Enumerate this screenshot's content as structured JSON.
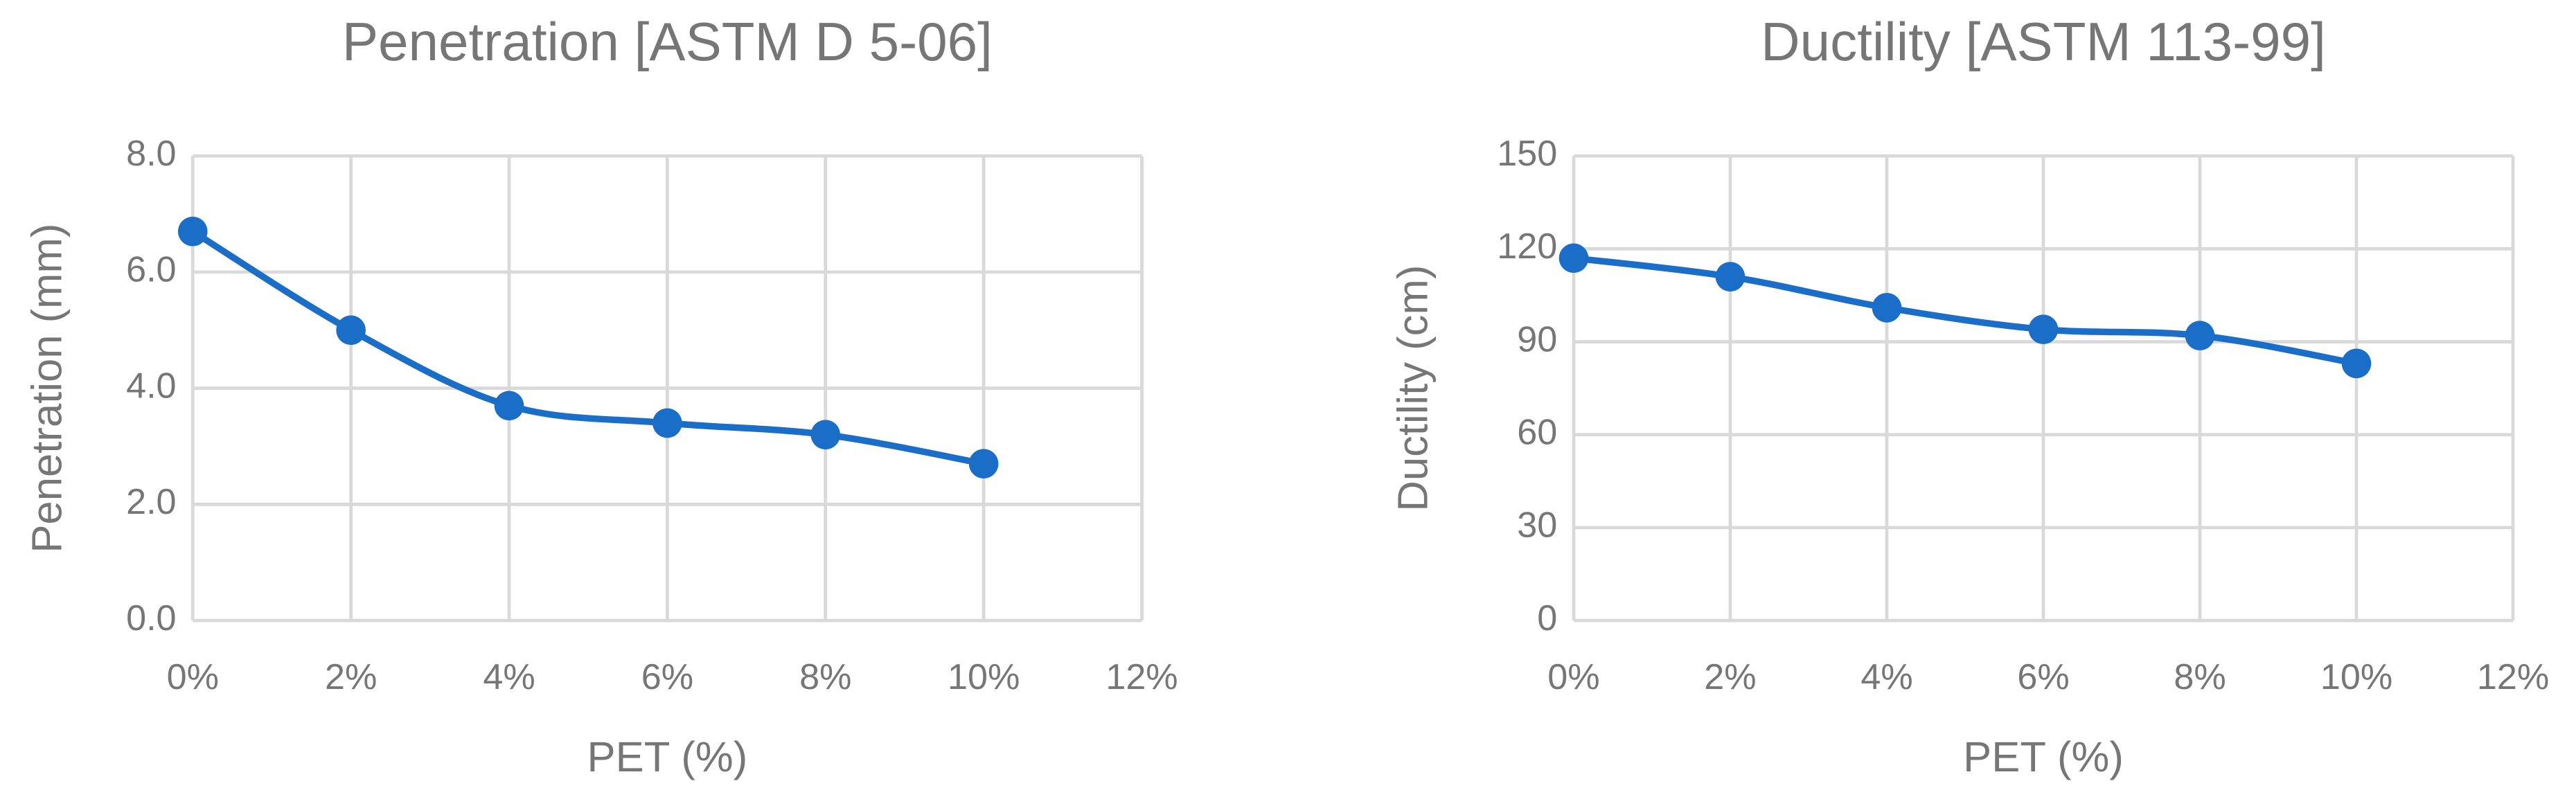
{
  "chart_data": [
    {
      "type": "line",
      "title": "Penetration [ASTM D 5-06]",
      "x_label": "PET (%)",
      "y_label": "Penetration (mm)",
      "x": [
        0,
        2,
        4,
        6,
        8,
        10
      ],
      "values": [
        6.7,
        5.0,
        3.7,
        3.4,
        3.2,
        2.7
      ],
      "color": "#1b6ec8",
      "xlim": [
        0,
        12
      ],
      "xticks": [
        {
          "value": 0,
          "label": "0%"
        },
        {
          "value": 2,
          "label": "2%"
        },
        {
          "value": 4,
          "label": "4%"
        },
        {
          "value": 6,
          "label": "6%"
        },
        {
          "value": 8,
          "label": "8%"
        },
        {
          "value": 10,
          "label": "10%"
        },
        {
          "value": 12,
          "label": "12%"
        }
      ],
      "ylim": [
        0,
        8
      ],
      "yticks": [
        {
          "value": 0,
          "label": "0.0"
        },
        {
          "value": 2,
          "label": "2.0"
        },
        {
          "value": 4,
          "label": "4.0"
        },
        {
          "value": 6,
          "label": "6.0"
        },
        {
          "value": 8,
          "label": "8.0"
        }
      ],
      "grid": true,
      "smooth": true
    },
    {
      "type": "line",
      "title": "Ductility [ASTM 113-99]",
      "x_label": "PET (%)",
      "y_label": "Ductility (cm)",
      "x": [
        0,
        2,
        4,
        6,
        8,
        10
      ],
      "values": [
        117,
        111,
        101,
        94,
        92,
        83
      ],
      "color": "#1b6ec8",
      "xlim": [
        0,
        12
      ],
      "xticks": [
        {
          "value": 0,
          "label": "0%"
        },
        {
          "value": 2,
          "label": "2%"
        },
        {
          "value": 4,
          "label": "4%"
        },
        {
          "value": 6,
          "label": "6%"
        },
        {
          "value": 8,
          "label": "8%"
        },
        {
          "value": 10,
          "label": "10%"
        },
        {
          "value": 12,
          "label": "12%"
        }
      ],
      "ylim": [
        0,
        150
      ],
      "yticks": [
        0,
        30,
        60,
        90,
        120,
        150
      ],
      "grid": true,
      "smooth": true
    }
  ]
}
